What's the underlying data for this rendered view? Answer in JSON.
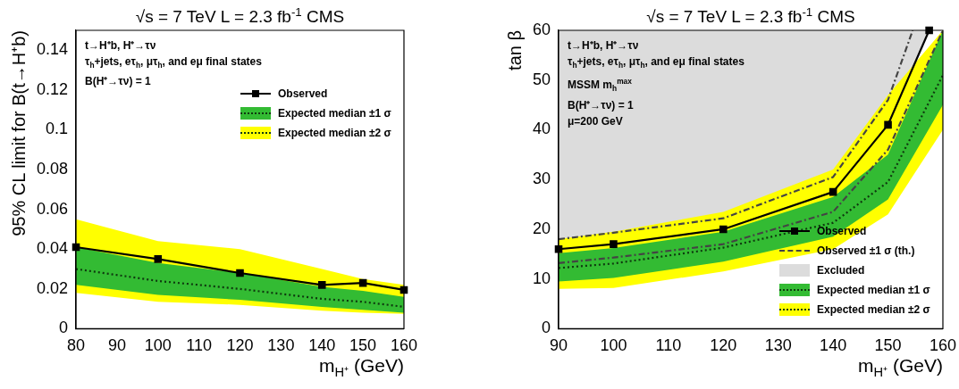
{
  "chart_data": [
    {
      "type": "line",
      "title": "√s = 7 TeV   L = 2.3 fb$^{-1}$  CMS",
      "xlabel": "m$_{H⁺}$ (GeV)",
      "ylabel": "95% CL limit for B(t→H⁺b)",
      "annotations": [
        "t→H⁺b, H⁺→τν",
        "τ$_{h}$+jets, eτ$_{h}$, μτ$_{h}$, and eμ final states",
        "B(H⁺→τν) = 1"
      ],
      "x": [
        80,
        100,
        120,
        140,
        150,
        160
      ],
      "series": [
        {
          "name": "Observed",
          "color": "#000000",
          "marker": "square",
          "line_style": "solid",
          "values": [
            0.041,
            0.035,
            0.028,
            0.022,
            0.023,
            0.0195
          ]
        },
        {
          "name": "Expected median ±1 σ",
          "color": "#33bb33",
          "line_style": "dotted",
          "values": [
            null,
            null,
            null,
            null,
            null,
            null
          ],
          "lower": [
            0.022,
            0.017,
            0.0145,
            0.011,
            0.0095,
            0.008
          ],
          "upper": [
            0.041,
            0.033,
            0.028,
            0.021,
            0.019,
            0.016
          ]
        },
        {
          "name": "Expected median ±2 σ",
          "color": "#ffff00",
          "line_style": "dotted",
          "values": [
            null,
            null,
            null,
            null,
            null,
            null
          ],
          "lower": [
            0.018,
            0.0135,
            0.012,
            0.009,
            0.008,
            0.0075
          ],
          "upper": [
            0.055,
            0.044,
            0.04,
            0.03,
            0.025,
            0.022
          ]
        },
        {
          "color": "#0f380f",
          "line_style": "dotted",
          "values": [
            0.03,
            0.024,
            0.02,
            0.015,
            0.0135,
            0.011
          ]
        }
      ],
      "xlim": [
        80,
        160
      ],
      "xticks": [
        80,
        90,
        100,
        110,
        120,
        130,
        140,
        150,
        160
      ],
      "ylim": [
        0,
        0.15
      ],
      "yticks": [
        0,
        0.02,
        0.04,
        0.06,
        0.08,
        0.1,
        0.12,
        0.14
      ],
      "grid": false,
      "legend": "top right"
    },
    {
      "type": "line",
      "title": "√s = 7 TeV   L = 2.3 fb$^{-1}$  CMS",
      "xlabel": "m$_{H⁺}$ (GeV)",
      "ylabel": "tan β",
      "annotations": [
        "t→H⁺b, H⁺→τν",
        "τ$_{h}$+jets, eτ$_{h}$, μτ$_{h}$, and eμ final states",
        "MSSM m$_{h}$$^{max}$",
        "B(H⁺→τν) = 1",
        "μ=200 GeV"
      ],
      "x": [
        90,
        100,
        120,
        140,
        150,
        157.5
      ],
      "series": [
        {
          "name": "Observed",
          "color": "#000000",
          "marker": "square",
          "line_style": "solid",
          "values": [
            16,
            17,
            20,
            27.5,
            41,
            60
          ]
        },
        {
          "name": "Observed ±1 σ (th.)",
          "color": "#444444",
          "line_style": "dashed",
          "x": [
            90,
            100,
            120,
            140,
            150,
            154.5
          ],
          "values": [
            18,
            19.3,
            22.2,
            30.5,
            46,
            60
          ]
        },
        {
          "name": "Excluded",
          "color": "#dcdcdc",
          "values": [
            null,
            null,
            null,
            null,
            null,
            null
          ],
          "lower": [
            16,
            17,
            20,
            27.5,
            41,
            60
          ],
          "upper": [
            60,
            60,
            60,
            60,
            60,
            60
          ]
        },
        {
          "name": "Expected median ±1 σ",
          "color": "#33bb33",
          "line_style": "dotted",
          "x": [
            90,
            100,
            120,
            140,
            150,
            160
          ],
          "values": [
            null,
            null,
            null,
            null,
            null,
            null
          ],
          "lower": [
            9.5,
            10.2,
            13.5,
            18.5,
            26,
            45
          ],
          "upper": [
            15.2,
            16.2,
            19.5,
            26.5,
            35,
            60
          ]
        },
        {
          "name": "Expected median ±2 σ",
          "color": "#ffff00",
          "line_style": "dotted",
          "x": [
            90,
            100,
            120,
            140,
            150,
            160
          ],
          "values": [
            null,
            null,
            null,
            null,
            null,
            null
          ],
          "lower": [
            8,
            8.2,
            11.5,
            16,
            23,
            40
          ],
          "upper": [
            18,
            19.5,
            23.5,
            32,
            47,
            60
          ]
        },
        {
          "color": "#444444",
          "line_style": "dashed",
          "x": [
            90,
            100,
            120,
            140,
            150,
            160
          ],
          "values": [
            13.2,
            14.3,
            17,
            23.5,
            36,
            60
          ]
        },
        {
          "color": "#0f380f",
          "line_style": "dotted",
          "x": [
            90,
            100,
            120,
            140,
            150,
            160
          ],
          "values": [
            12.2,
            13.1,
            16.3,
            21.3,
            29.5,
            51
          ]
        }
      ],
      "xlim": [
        90,
        160
      ],
      "xticks": [
        90,
        100,
        110,
        120,
        130,
        140,
        150,
        160
      ],
      "ylim": [
        0,
        60
      ],
      "yticks": [
        0,
        10,
        20,
        30,
        40,
        50,
        60
      ],
      "grid": false,
      "legend": "bottom right"
    }
  ]
}
